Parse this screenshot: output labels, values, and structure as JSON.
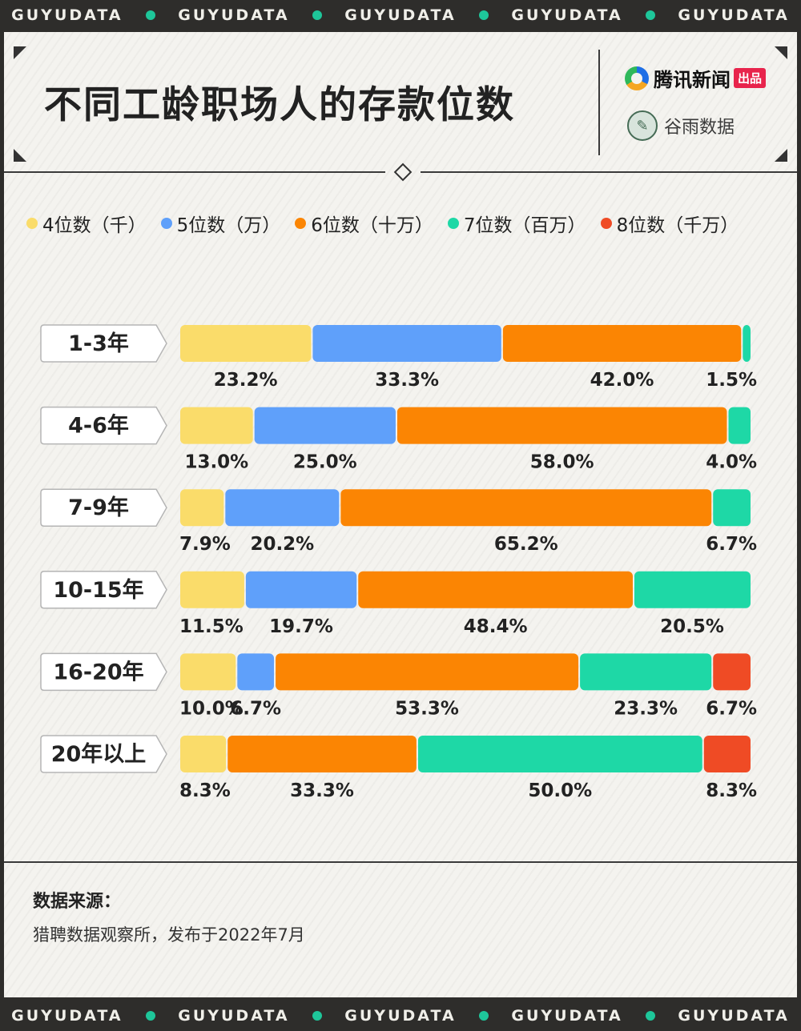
{
  "strip_text": "GUYUDATA",
  "header": {
    "title": "不同工龄职场人的存款位数",
    "brand_primary": "腾讯新闻",
    "brand_tag": "出品",
    "brand_secondary": "谷雨数据",
    "brand_secondary_icon": "bird-icon"
  },
  "footer": {
    "source_label": "数据来源：",
    "source_text": "猎聘数据观察所，发布于2022年7月"
  },
  "colors": {
    "background_dark": "#2e2d2b",
    "card": "#f4f3ef",
    "accent_dot": "#1ec69a"
  },
  "chart_data": {
    "type": "bar",
    "orientation": "horizontal",
    "stacked": true,
    "percent": true,
    "categories": [
      "1-3年",
      "4-6年",
      "7-9年",
      "10-15年",
      "16-20年",
      "20年以上"
    ],
    "series": [
      {
        "name": "4位数（千）",
        "color": "#fadc6a",
        "values": [
          23.2,
          13.0,
          7.9,
          11.5,
          10.0,
          8.3
        ]
      },
      {
        "name": "5位数（万）",
        "color": "#5fa0fa",
        "values": [
          33.3,
          25.0,
          20.2,
          19.7,
          6.7,
          null
        ]
      },
      {
        "name": "6位数（十万）",
        "color": "#fb8503",
        "values": [
          42.0,
          58.0,
          65.2,
          48.4,
          53.3,
          33.3
        ]
      },
      {
        "name": "7位数（百万）",
        "color": "#1ed8a6",
        "values": [
          1.5,
          4.0,
          6.7,
          20.5,
          23.3,
          50.0
        ]
      },
      {
        "name": "8位数（千万）",
        "color": "#ef4b25",
        "values": [
          null,
          null,
          null,
          null,
          6.7,
          8.3
        ]
      }
    ],
    "legend_position": "top",
    "grid": false,
    "xlim": [
      0,
      100
    ]
  }
}
